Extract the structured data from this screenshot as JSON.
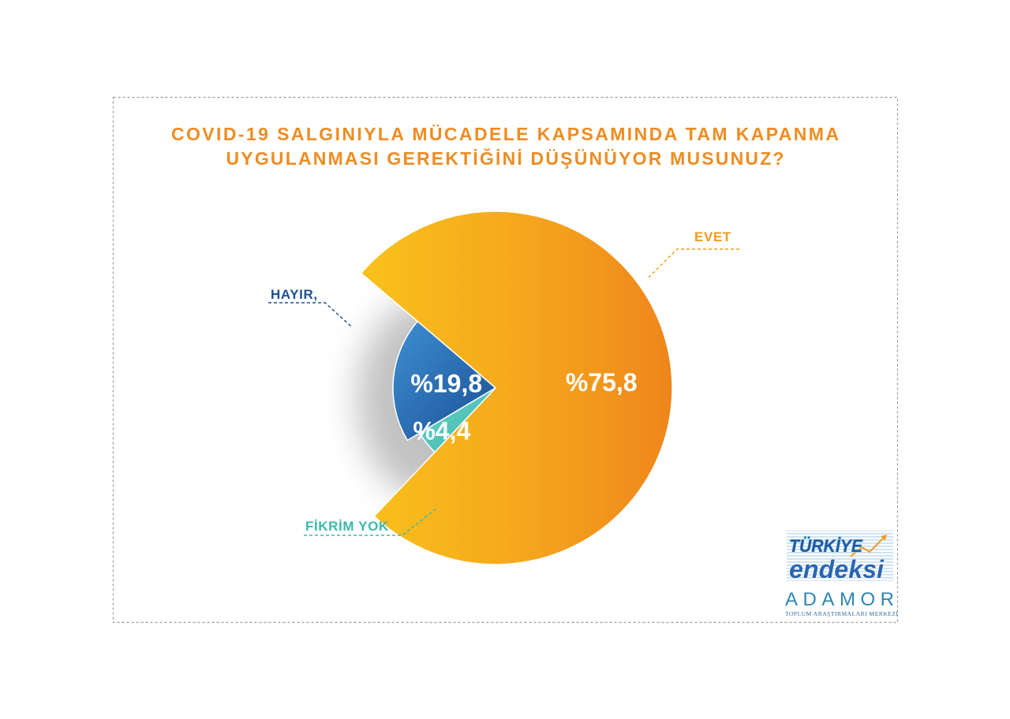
{
  "chart_data": {
    "type": "pie",
    "title_lines": [
      "COVID-19 SALGINIYLA MÜCADELE KAPSAMINDA TAM KAPANMA",
      "UYGULANMASI GEREKTİĞİNİ DÜŞÜNÜYOR MUSUNUZ?"
    ],
    "categories": [
      "EVET",
      "HAYIR,",
      "FİKRİM YOK"
    ],
    "values": [
      75.8,
      19.8,
      4.4
    ],
    "data_labels": [
      "%75,8",
      "%19,8",
      "%4,4"
    ],
    "colors": [
      "#f39a1e",
      "#1d4f93",
      "#3bb8ad"
    ],
    "legend": "none"
  },
  "style": {
    "title_color": "#ef8c21",
    "border_color": "#9a9a9a"
  },
  "logo": {
    "line1": "TÜRKİYE",
    "line2": "endeksi",
    "brand": "ADAMOR",
    "tagline": "TOPLUM ARAŞTIRMALARI MERKEZİ"
  }
}
